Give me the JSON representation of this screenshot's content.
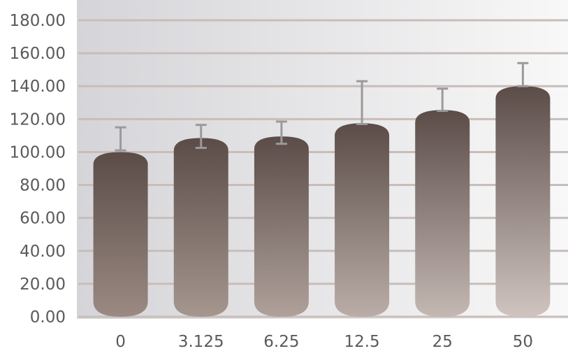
{
  "chart_data": {
    "type": "bar",
    "title": "",
    "xlabel": "",
    "ylabel": "",
    "categories": [
      "0",
      "3.125",
      "6.25",
      "12.5",
      "25",
      "50"
    ],
    "series": [
      {
        "values": [
          100.0,
          108.5,
          109.5,
          117.5,
          125.5,
          140.0
        ],
        "error_upper": [
          115.0,
          116.5,
          118.5,
          143.0,
          138.5,
          154.0
        ],
        "error_lower": [
          101.0,
          102.5,
          105.0,
          117.0,
          125.0,
          140.0
        ]
      }
    ],
    "ylim": [
      0,
      180
    ],
    "y_ticks": [
      "0.00",
      "20.00",
      "40.00",
      "60.00",
      "80.00",
      "100.00",
      "120.00",
      "140.00",
      "160.00",
      "180.00"
    ],
    "grid": true,
    "legend": "none",
    "colors": {
      "bar_top": "#5b4c48",
      "bar_bottom_dark": "#9a8a82",
      "bar_bottom_light": "#cfc4bf",
      "grid": "#c8bdb8",
      "error_bar": "#9a9a9a",
      "background_left": "#d5d5d9",
      "background_right": "#f8f8f8",
      "label": "#5a5a5a"
    }
  }
}
